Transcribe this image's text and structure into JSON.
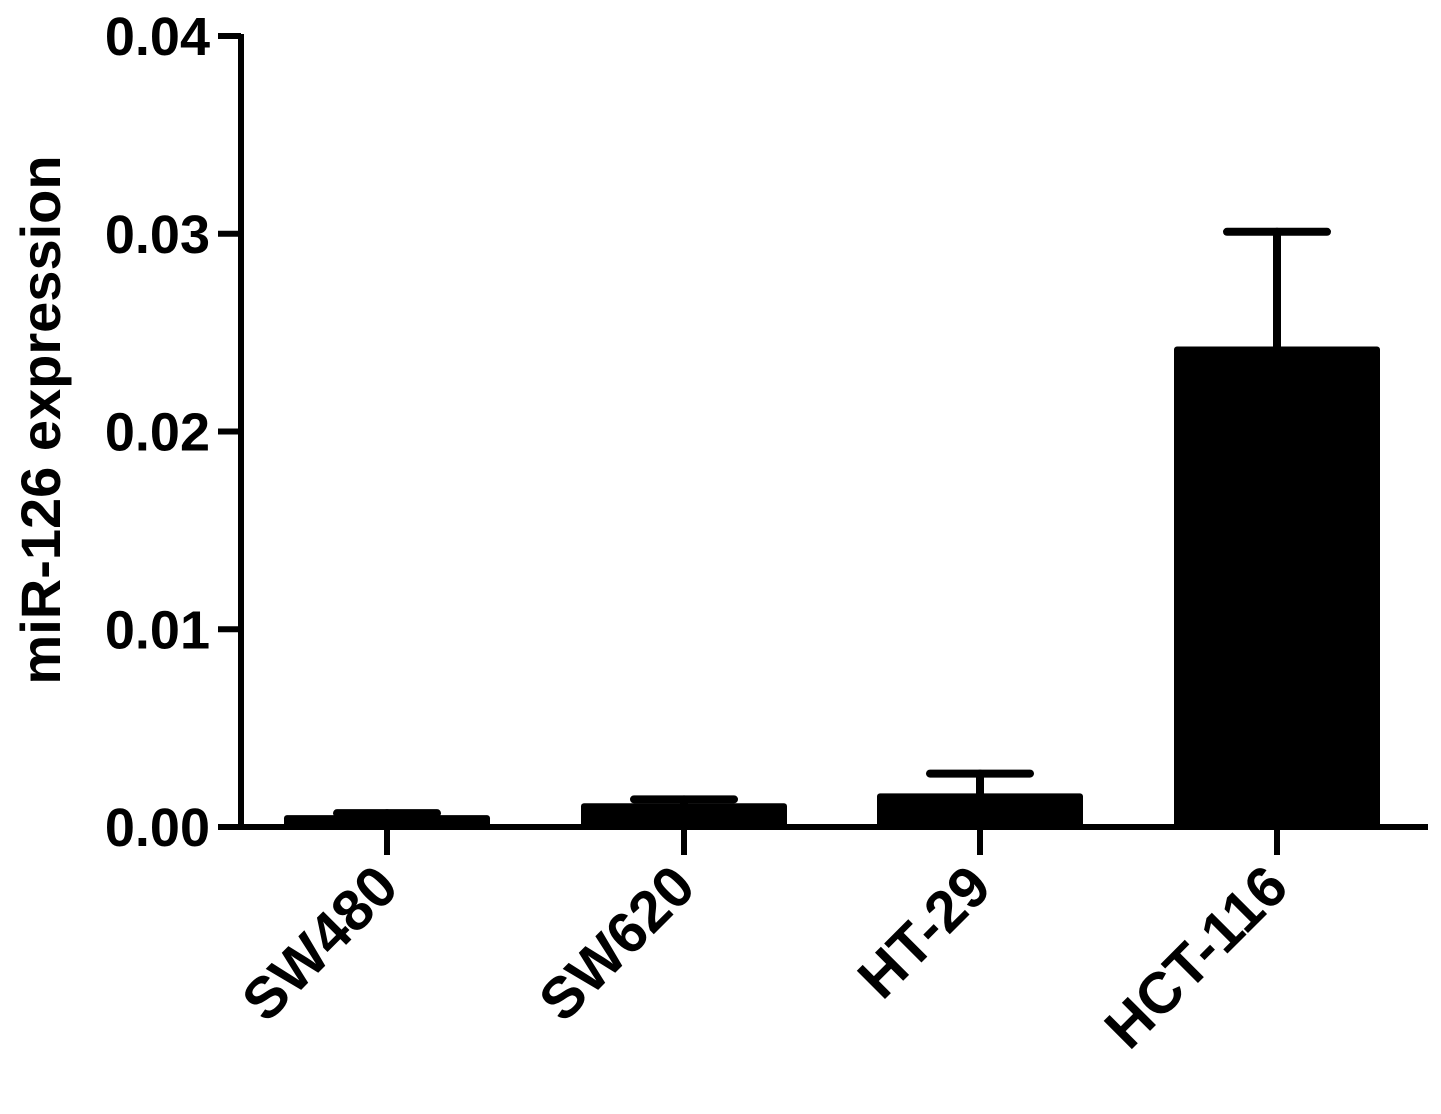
{
  "chart_data": {
    "type": "bar",
    "title": "",
    "xlabel": "",
    "ylabel": "miR-126 expression",
    "ylim": [
      0,
      0.04
    ],
    "yticks": [
      "0.00",
      "0.01",
      "0.02",
      "0.03",
      "0.04"
    ],
    "categories": [
      "SW480",
      "SW620",
      "HT-29",
      "HCT-116"
    ],
    "values": [
      0.0006,
      0.0012,
      0.0017,
      0.0243
    ],
    "errors": [
      0.0001,
      0.0002,
      0.001,
      0.0058
    ],
    "bar_color": "#000000",
    "grid": false,
    "legend": "none"
  }
}
